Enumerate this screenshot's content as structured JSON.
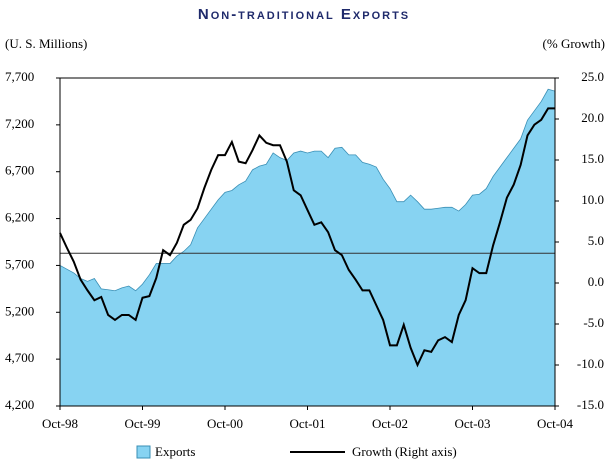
{
  "chart_data": {
    "type": "area-line",
    "title": "Non-traditional Exports",
    "y_label": "(U. S. Millions)",
    "y2_label": "(% Growth)",
    "categories": [
      "Oct-98",
      null,
      null,
      null,
      null,
      null,
      null,
      null,
      null,
      null,
      null,
      null,
      "Oct-99",
      null,
      null,
      null,
      null,
      null,
      null,
      null,
      null,
      null,
      null,
      null,
      "Oct-00",
      null,
      null,
      null,
      null,
      null,
      null,
      null,
      null,
      null,
      null,
      null,
      "Oct-01",
      null,
      null,
      null,
      null,
      null,
      null,
      null,
      null,
      null,
      null,
      null,
      "Oct-02",
      null,
      null,
      null,
      null,
      null,
      null,
      null,
      null,
      null,
      null,
      null,
      "Oct-03",
      null,
      null,
      null,
      null,
      null,
      null,
      null,
      null,
      null,
      null,
      null,
      "Oct-04"
    ],
    "series": [
      {
        "name": "Exports",
        "color": "#87d3f2",
        "values": [
          5700,
          5660,
          5620,
          5560,
          5530,
          5560,
          5450,
          5440,
          5430,
          5460,
          5480,
          5430,
          5500,
          5600,
          5720,
          5720,
          5720,
          5800,
          5850,
          5920,
          6100,
          6200,
          6300,
          6400,
          6480,
          6500,
          6560,
          6600,
          6720,
          6760,
          6780,
          6900,
          6850,
          6820,
          6900,
          6920,
          6900,
          6920,
          6920,
          6850,
          6950,
          6960,
          6880,
          6880,
          6800,
          6780,
          6750,
          6620,
          6520,
          6380,
          6380,
          6450,
          6380,
          6300,
          6300,
          6310,
          6320,
          6320,
          6280,
          6350,
          6450,
          6460,
          6520,
          6650,
          6750,
          6850,
          6950,
          7050,
          7250,
          7350,
          7450,
          7580,
          7560
        ]
      },
      {
        "name": "Growth (Right axis)",
        "color": "#000000",
        "axis": "y2",
        "values": [
          6.1,
          4.3,
          2.6,
          0.4,
          -0.9,
          -2.1,
          -1.7,
          -3.9,
          -4.5,
          -3.9,
          -3.9,
          -4.5,
          -1.8,
          -1.6,
          0.6,
          4.0,
          3.4,
          4.9,
          7.1,
          7.7,
          9.1,
          11.6,
          13.8,
          15.6,
          15.6,
          17.2,
          14.8,
          14.6,
          16.2,
          18.0,
          17.1,
          16.8,
          16.8,
          14.8,
          11.3,
          10.7,
          8.9,
          7.1,
          7.4,
          6.2,
          4.0,
          3.4,
          1.6,
          0.4,
          -0.9,
          -0.9,
          -2.7,
          -4.5,
          -7.6,
          -7.6,
          -5.1,
          -7.9,
          -10.0,
          -8.2,
          -8.4,
          -7.0,
          -6.6,
          -7.2,
          -3.9,
          -2.1,
          1.8,
          1.2,
          1.2,
          4.6,
          7.4,
          10.4,
          12.0,
          14.4,
          18.0,
          19.3,
          19.9,
          21.3,
          21.3
        ]
      }
    ],
    "ylim": [
      4200,
      7700
    ],
    "yticks": [
      {
        "value": 4200,
        "label": "4,200"
      },
      {
        "value": 4700,
        "label": "4,700"
      },
      {
        "value": 5200,
        "label": "5,200"
      },
      {
        "value": 5700,
        "label": "5,700"
      },
      {
        "value": 6200,
        "label": "6,200"
      },
      {
        "value": 6700,
        "label": "6,700"
      },
      {
        "value": 7200,
        "label": "7,200"
      },
      {
        "value": 7700,
        "label": "7,700"
      }
    ],
    "y2lim": [
      -15,
      25
    ],
    "y2ticks": [
      {
        "value": -15,
        "label": "-15.0"
      },
      {
        "value": -10,
        "label": "-10.0"
      },
      {
        "value": -5,
        "label": "-5.0"
      },
      {
        "value": 0,
        "label": "0.0"
      },
      {
        "value": 5,
        "label": "5.0"
      },
      {
        "value": 10,
        "label": "10.0"
      },
      {
        "value": 15,
        "label": "15.0"
      },
      {
        "value": 20,
        "label": "20.0"
      },
      {
        "value": 25,
        "label": "25.0"
      }
    ],
    "reference_line": 5830,
    "legend": "bottom"
  }
}
